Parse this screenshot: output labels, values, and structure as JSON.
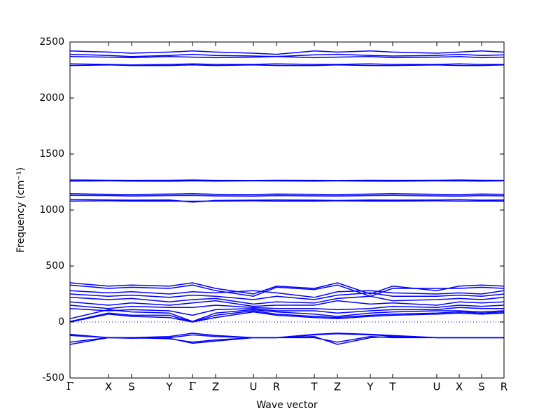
{
  "chart_data": {
    "type": "line",
    "xlabel": "Wave vector",
    "ylabel": "Frequency (cm⁻¹)",
    "color": "#0000ff",
    "zero_line": true,
    "xlim": [
      0,
      620
    ],
    "ylim": [
      -500,
      2500
    ],
    "yticks": [
      -500,
      0,
      500,
      1000,
      1500,
      2000,
      2500
    ],
    "xticks": [
      {
        "value": 0,
        "label": "Γ"
      },
      {
        "value": 55,
        "label": "X"
      },
      {
        "value": 88,
        "label": "S"
      },
      {
        "value": 142,
        "label": "Y"
      },
      {
        "value": 175,
        "label": "Γ"
      },
      {
        "value": 208,
        "label": "Z"
      },
      {
        "value": 262,
        "label": "U"
      },
      {
        "value": 295,
        "label": "R"
      },
      {
        "value": 349,
        "label": "T"
      },
      {
        "value": 382,
        "label": "Z"
      },
      {
        "value": 429,
        "label": "Y"
      },
      {
        "value": 461,
        "label": "T"
      },
      {
        "value": 524,
        "label": "U"
      },
      {
        "value": 556,
        "label": "X"
      },
      {
        "value": 588,
        "label": "S"
      },
      {
        "value": 620,
        "label": "R"
      }
    ],
    "x": [
      0,
      55,
      88,
      142,
      175,
      208,
      262,
      295,
      349,
      382,
      429,
      461,
      524,
      556,
      588,
      620
    ],
    "series": [
      {
        "values": [
          2420,
          2410,
          2400,
          2410,
          2420,
          2410,
          2400,
          2390,
          2420,
          2410,
          2420,
          2410,
          2400,
          2410,
          2420,
          2410
        ]
      },
      {
        "values": [
          2390,
          2380,
          2370,
          2380,
          2390,
          2380,
          2375,
          2370,
          2385,
          2390,
          2380,
          2375,
          2380,
          2390,
          2380,
          2385
        ]
      },
      {
        "values": [
          2370,
          2365,
          2360,
          2370,
          2365,
          2360,
          2365,
          2370,
          2360,
          2365,
          2370,
          2360,
          2365,
          2370,
          2360,
          2365
        ]
      },
      {
        "values": [
          2305,
          2300,
          2295,
          2300,
          2305,
          2300,
          2300,
          2305,
          2300,
          2300,
          2305,
          2300,
          2300,
          2305,
          2300,
          2300
        ]
      },
      {
        "values": [
          2290,
          2295,
          2290,
          2290,
          2295,
          2290,
          2295,
          2290,
          2290,
          2295,
          2290,
          2290,
          2295,
          2290,
          2290,
          2295
        ]
      },
      {
        "values": [
          1268,
          1266,
          1265,
          1266,
          1268,
          1265,
          1264,
          1266,
          1265,
          1264,
          1266,
          1265,
          1266,
          1268,
          1266,
          1265
        ]
      },
      {
        "values": [
          1258,
          1260,
          1258,
          1257,
          1260,
          1258,
          1260,
          1259,
          1258,
          1260,
          1258,
          1257,
          1260,
          1259,
          1258,
          1260
        ]
      },
      {
        "values": [
          1145,
          1140,
          1138,
          1142,
          1145,
          1140,
          1138,
          1142,
          1140,
          1138,
          1142,
          1145,
          1140,
          1138,
          1142,
          1140
        ]
      },
      {
        "values": [
          1130,
          1128,
          1125,
          1128,
          1130,
          1126,
          1124,
          1128,
          1126,
          1125,
          1128,
          1130,
          1126,
          1124,
          1128,
          1126
        ]
      },
      {
        "values": [
          1095,
          1090,
          1088,
          1090,
          1070,
          1085,
          1088,
          1090,
          1088,
          1085,
          1090,
          1088,
          1090,
          1092,
          1088,
          1090
        ]
      },
      {
        "values": [
          1080,
          1082,
          1080,
          1080,
          1078,
          1080,
          1082,
          1080,
          1080,
          1082,
          1080,
          1080,
          1082,
          1080,
          1080,
          1080
        ]
      },
      {
        "values": [
          350,
          320,
          330,
          320,
          350,
          300,
          250,
          320,
          300,
          350,
          250,
          320,
          280,
          320,
          330,
          320
        ]
      },
      {
        "values": [
          330,
          300,
          310,
          300,
          330,
          280,
          230,
          310,
          290,
          330,
          230,
          300,
          300,
          300,
          310,
          300
        ]
      },
      {
        "values": [
          280,
          260,
          270,
          250,
          270,
          260,
          280,
          260,
          220,
          270,
          280,
          260,
          250,
          260,
          250,
          280
        ]
      },
      {
        "values": [
          250,
          230,
          240,
          220,
          240,
          230,
          200,
          230,
          200,
          240,
          260,
          230,
          230,
          240,
          230,
          250
        ]
      },
      {
        "values": [
          220,
          200,
          210,
          180,
          200,
          210,
          160,
          180,
          170,
          210,
          230,
          190,
          200,
          210,
          200,
          220
        ]
      },
      {
        "values": [
          180,
          150,
          170,
          150,
          170,
          190,
          140,
          150,
          150,
          190,
          160,
          170,
          150,
          180,
          170,
          180
        ]
      },
      {
        "values": [
          150,
          120,
          140,
          130,
          130,
          150,
          130,
          120,
          120,
          110,
          120,
          140,
          130,
          150,
          140,
          150
        ]
      },
      {
        "values": [
          120,
          100,
          110,
          100,
          60,
          110,
          120,
          100,
          100,
          80,
          100,
          110,
          110,
          130,
          120,
          120
        ]
      },
      {
        "values": [
          30,
          110,
          90,
          80,
          5,
          80,
          110,
          90,
          70,
          50,
          80,
          90,
          100,
          100,
          90,
          100
        ]
      },
      {
        "values": [
          5,
          80,
          60,
          60,
          0,
          60,
          100,
          70,
          50,
          40,
          60,
          70,
          80,
          90,
          80,
          90
        ]
      },
      {
        "values": [
          0,
          70,
          50,
          40,
          0,
          40,
          90,
          60,
          40,
          30,
          50,
          60,
          70,
          80,
          70,
          80
        ]
      },
      {
        "values": [
          -110,
          -140,
          -140,
          -130,
          -100,
          -120,
          -140,
          -140,
          -110,
          -100,
          -110,
          -120,
          -140,
          -140,
          -140,
          -140
        ]
      },
      {
        "values": [
          -120,
          -140,
          -145,
          -140,
          -115,
          -130,
          -140,
          -140,
          -115,
          -105,
          -115,
          -125,
          -140,
          -140,
          -140,
          -140
        ]
      },
      {
        "values": [
          -180,
          -140,
          -140,
          -150,
          -180,
          -160,
          -140,
          -140,
          -130,
          -200,
          -140,
          -130,
          -140,
          -140,
          -140,
          -140
        ]
      },
      {
        "values": [
          -200,
          -140,
          -140,
          -145,
          -190,
          -170,
          -140,
          -140,
          -140,
          -180,
          -130,
          -140,
          -140,
          -140,
          -140,
          -140
        ]
      }
    ]
  }
}
